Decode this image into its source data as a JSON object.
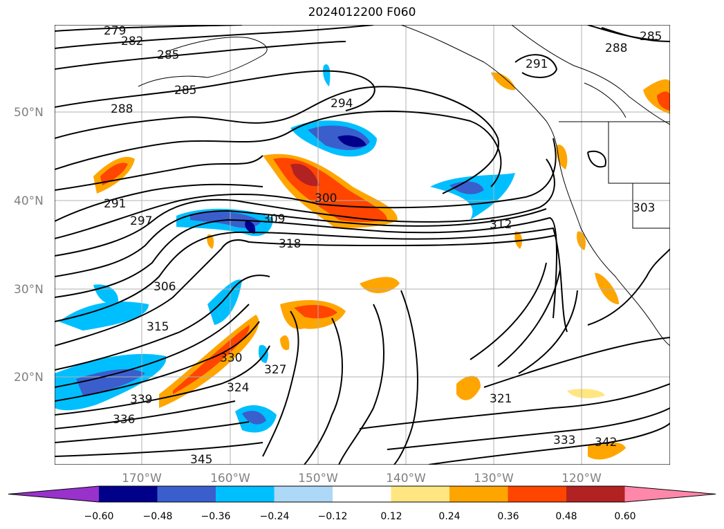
{
  "title": "2024012200 F060",
  "map": {
    "lat_labels": [
      "50°N",
      "40°N",
      "30°N",
      "20°N"
    ],
    "lon_labels": [
      "170°W",
      "160°W",
      "150°W",
      "140°W",
      "130°W",
      "120°W"
    ],
    "contour_labels": [
      "279",
      "282",
      "285",
      "285",
      "288",
      "291",
      "294",
      "297",
      "300",
      "303",
      "306",
      "309",
      "312",
      "315",
      "318",
      "321",
      "324",
      "327",
      "330",
      "333",
      "336",
      "339",
      "342",
      "345",
      "291",
      "288",
      "285"
    ]
  },
  "colorbar": {
    "ticks": [
      "−0.60",
      "−0.48",
      "−0.36",
      "−0.24",
      "−0.12",
      "0.12",
      "0.24",
      "0.36",
      "0.48",
      "0.60"
    ],
    "colors": [
      "#9932cc",
      "#00008b",
      "#3a5fcd",
      "#00bfff",
      "#add8f7",
      "#ffffff",
      "#ffe680",
      "#ffa500",
      "#ff4500",
      "#b22222",
      "#ff88aa"
    ]
  }
}
